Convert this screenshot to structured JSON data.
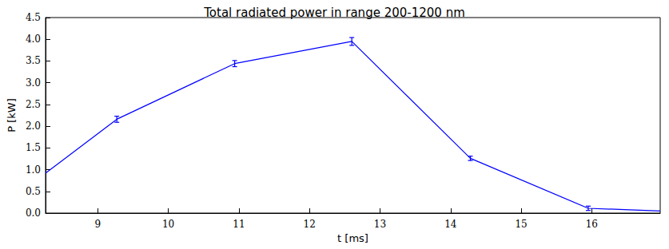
{
  "chart_data": {
    "type": "line",
    "title": "Total radiated power in range 200-1200 nm",
    "x_label": "t [ms]",
    "y_label": "P [kW]",
    "x": [
      8.26,
      9.27,
      10.94,
      12.6,
      14.28,
      15.95,
      16.97
    ],
    "values": [
      0.92,
      2.16,
      3.44,
      3.95,
      1.26,
      0.11,
      0.05
    ],
    "errors": [
      null,
      0.07,
      0.07,
      0.09,
      0.05,
      0.05,
      null
    ],
    "color": "#0000ff",
    "xlim": [
      8.26,
      16.97
    ],
    "xticks": [
      9,
      10,
      11,
      12,
      13,
      14,
      15,
      16
    ],
    "ylim": [
      0,
      4.5
    ],
    "yticks": [
      {
        "value": 0,
        "label": "0.0"
      },
      0.5,
      {
        "value": 1,
        "label": "1.0"
      },
      1.5,
      {
        "value": 2,
        "label": "2.0"
      },
      2.5,
      {
        "value": 3,
        "label": "3.0"
      },
      3.5,
      {
        "value": 4,
        "label": "4.0"
      },
      4.5
    ],
    "grid": false
  }
}
